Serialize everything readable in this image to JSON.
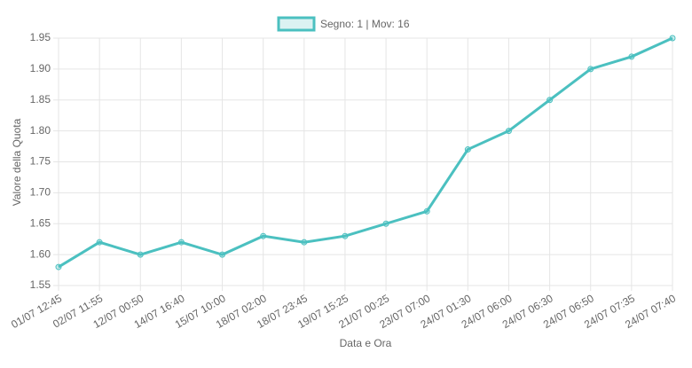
{
  "chart_data": {
    "type": "line",
    "legend": "Segno: 1 | Mov: 16",
    "xlabel": "Data e Ora",
    "ylabel": "Valore della Quota",
    "categories": [
      "01/07 12:45",
      "02/07 11:55",
      "12/07 00:50",
      "14/07 16:40",
      "15/07 10:00",
      "18/07 02:00",
      "18/07 23:45",
      "19/07 15:25",
      "21/07 00:25",
      "23/07 07:00",
      "24/07 01:30",
      "24/07 06:00",
      "24/07 06:30",
      "24/07 06:50",
      "24/07 07:35",
      "24/07 07:40"
    ],
    "series": [
      {
        "name": "Segno: 1 | Mov: 16",
        "color": "#4bc0c0",
        "values": [
          1.58,
          1.62,
          1.6,
          1.62,
          1.6,
          1.63,
          1.62,
          1.63,
          1.65,
          1.67,
          1.77,
          1.8,
          1.85,
          1.9,
          1.92,
          1.95
        ]
      }
    ],
    "ylim": [
      1.55,
      1.95
    ],
    "yticks": [
      1.55,
      {
        "value": 1.6,
        "label": "1.60"
      },
      1.65,
      {
        "value": 1.7,
        "label": "1.70"
      },
      1.75,
      {
        "value": 1.8,
        "label": "1.80"
      },
      1.85,
      {
        "value": 1.9,
        "label": "1.90"
      },
      1.95
    ],
    "grid": true
  }
}
